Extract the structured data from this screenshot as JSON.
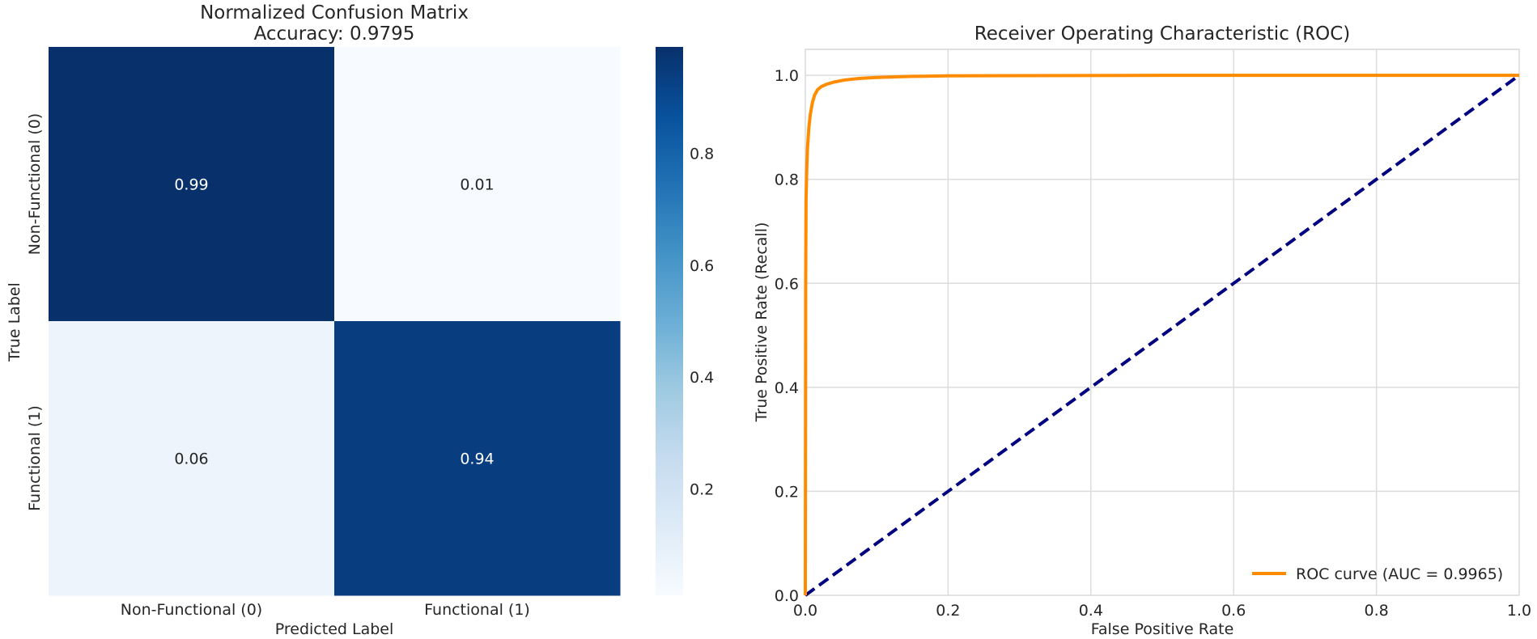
{
  "chart_data": [
    {
      "type": "heatmap",
      "title": "Normalized Confusion Matrix",
      "subtitle": "Accuracy: 0.9795",
      "xlabel": "Predicted Label",
      "ylabel": "True Label",
      "x_categories": [
        "Non-Functional (0)",
        "Functional (1)"
      ],
      "y_categories": [
        "Non-Functional (0)",
        "Functional (1)"
      ],
      "values": [
        [
          0.99,
          0.01
        ],
        [
          0.06,
          0.94
        ]
      ],
      "value_labels": [
        [
          "0.99",
          "0.01"
        ],
        [
          "0.06",
          "0.94"
        ]
      ],
      "colormap": "Blues",
      "colorbar": {
        "range": [
          0.01,
          0.99
        ],
        "ticks": [
          0.2,
          0.4,
          0.6,
          0.8
        ],
        "tick_labels": [
          "0.2",
          "0.4",
          "0.6",
          "0.8"
        ]
      }
    },
    {
      "type": "line",
      "title": "Receiver Operating Characteristic (ROC)",
      "xlabel": "False Positive Rate",
      "ylabel": "True Positive Rate (Recall)",
      "xlim": [
        0,
        1
      ],
      "ylim": [
        0,
        1.05
      ],
      "x_ticks": [
        0,
        0.2,
        0.4,
        0.6,
        0.8,
        1.0
      ],
      "x_tick_labels": [
        "0.0",
        "0.2",
        "0.4",
        "0.6",
        "0.8",
        "1.0"
      ],
      "y_ticks": [
        0,
        0.2,
        0.4,
        0.6,
        0.8,
        1.0
      ],
      "y_tick_labels": [
        "0.0",
        "0.2",
        "0.4",
        "0.6",
        "0.8",
        "1.0"
      ],
      "grid": true,
      "legend_position": "lower-right",
      "series": [
        {
          "name": "ROC curve (AUC = 0.9965)",
          "color": "#ff8c00",
          "style": "solid",
          "x": [
            0,
            0.0005,
            0.001,
            0.002,
            0.003,
            0.005,
            0.007,
            0.01,
            0.013,
            0.017,
            0.022,
            0.03,
            0.04,
            0.055,
            0.075,
            0.1,
            0.15,
            0.2,
            0.3,
            0.5,
            0.7,
            1.0
          ],
          "y": [
            0,
            0.6,
            0.76,
            0.82,
            0.86,
            0.9,
            0.925,
            0.948,
            0.962,
            0.972,
            0.978,
            0.983,
            0.987,
            0.991,
            0.994,
            0.996,
            0.998,
            0.999,
            0.9995,
            1.0,
            1.0,
            1.0
          ]
        },
        {
          "name": "",
          "color": "#000080",
          "style": "dashed",
          "x": [
            0,
            1
          ],
          "y": [
            0,
            1
          ]
        }
      ]
    }
  ]
}
